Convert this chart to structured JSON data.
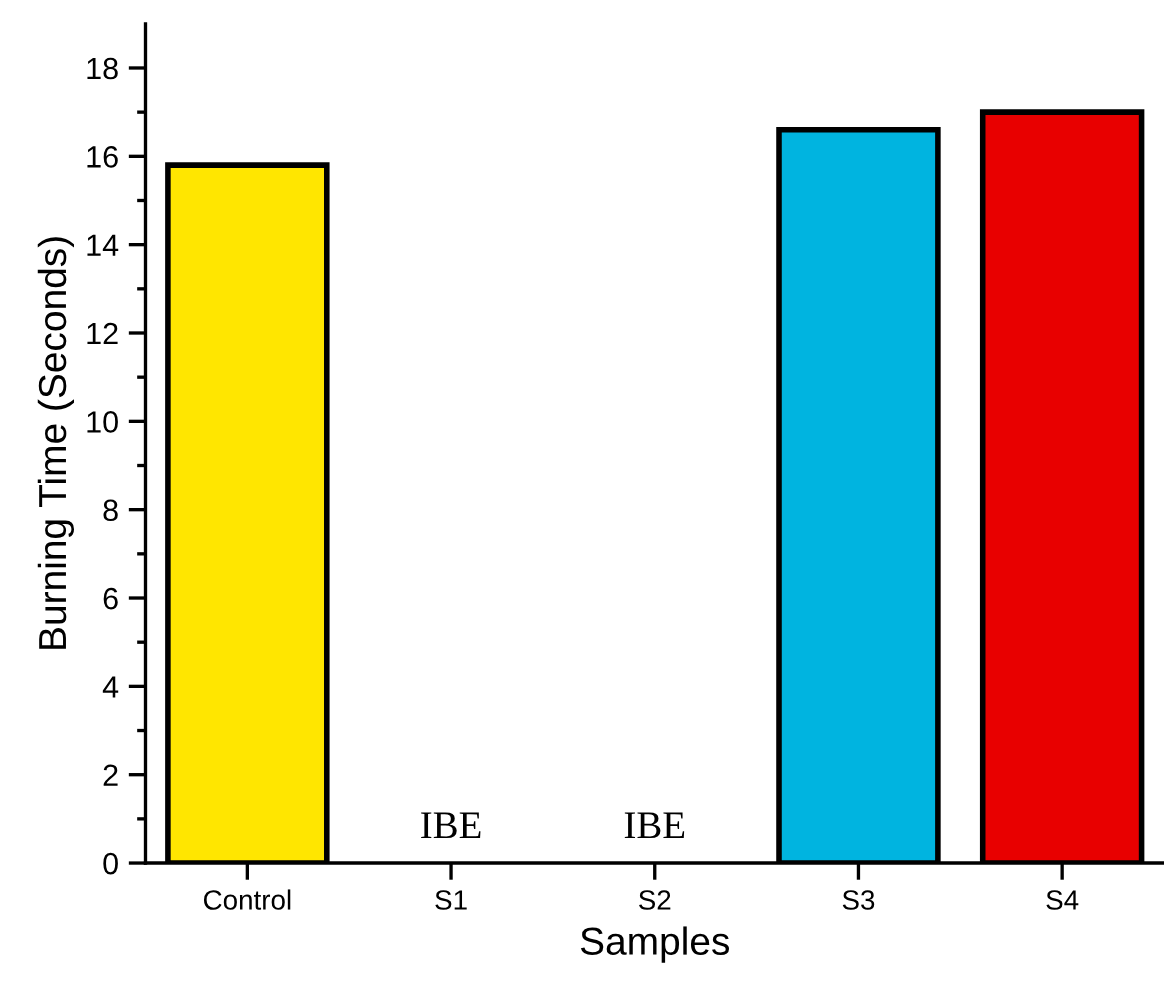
{
  "chart_data": {
    "type": "bar",
    "xlabel": "Samples",
    "ylabel": "Burning Time (Seconds)",
    "categories": [
      "Control",
      "S1",
      "S2",
      "S3",
      "S4"
    ],
    "values": [
      15.8,
      null,
      null,
      16.6,
      17.0
    ],
    "colors": [
      "#ffe600",
      "#ffffff",
      "#ffffff",
      "#00b4e0",
      "#e80000"
    ],
    "ylim": [
      0,
      19
    ],
    "yticks": [
      0,
      2,
      4,
      6,
      8,
      10,
      12,
      14,
      16,
      18
    ],
    "annotations": [
      "IBE",
      "IBE"
    ],
    "grid": false,
    "legend": false
  }
}
